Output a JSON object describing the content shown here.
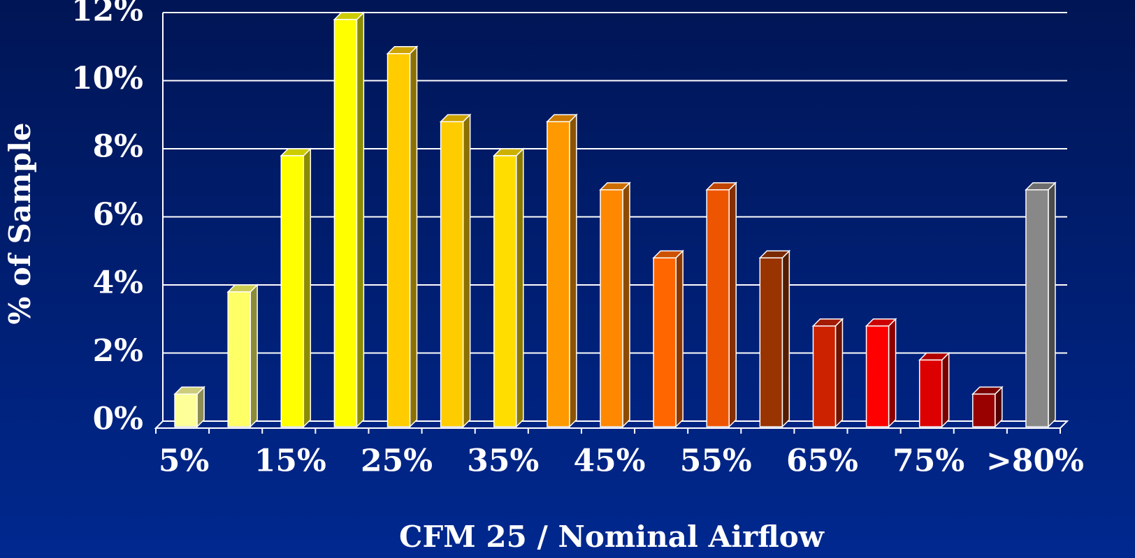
{
  "chart_data": {
    "type": "bar3d",
    "x_label": "CFM 25 / Nominal Airflow",
    "y_label": "% of Sample",
    "categories": [
      "5%",
      null,
      "15%",
      null,
      "25%",
      null,
      "35%",
      null,
      "45%",
      null,
      "55%",
      null,
      "65%",
      null,
      "75%",
      null,
      ">80%"
    ],
    "values": [
      1,
      4,
      8,
      12,
      11,
      9,
      8,
      9,
      7,
      5,
      7,
      5,
      3,
      3,
      2,
      1,
      7
    ],
    "colors": [
      "#ffff99",
      "#ffff66",
      "#ffff00",
      "#ffff00",
      "#ffcc00",
      "#ffcc00",
      "#ffdd00",
      "#ff9900",
      "#ff8800",
      "#ff6600",
      "#ee5500",
      "#993300",
      "#cc2200",
      "#ff0000",
      "#dd0000",
      "#990000",
      "#888888"
    ],
    "ylim": [
      0,
      12
    ],
    "yticks": [
      {
        "value": 0,
        "label": "0%"
      },
      {
        "value": 2,
        "label": "2%"
      },
      {
        "value": 4,
        "label": "4%"
      },
      {
        "value": 6,
        "label": "6%"
      },
      {
        "value": 8,
        "label": "8%"
      },
      {
        "value": 10,
        "label": "10%"
      },
      {
        "value": 12,
        "label": "12%"
      }
    ],
    "grid": true
  }
}
